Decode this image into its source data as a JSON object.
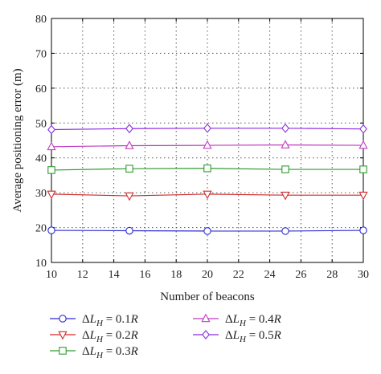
{
  "chart_data": {
    "type": "line",
    "xlabel": "Number of beacons",
    "ylabel": "Average positioning error (m)",
    "xlim": [
      10,
      30
    ],
    "ylim": [
      10,
      80
    ],
    "xticks": [
      10,
      12,
      14,
      16,
      18,
      20,
      22,
      24,
      26,
      28,
      30
    ],
    "yticks": [
      10,
      20,
      30,
      40,
      50,
      60,
      70,
      80
    ],
    "grid": "dotted",
    "legend_position": "below",
    "x": [
      10,
      15,
      20,
      25,
      30
    ],
    "series": [
      {
        "name": "ΔL_H = 0.1R",
        "label_var": "ΔL",
        "label_sub": "H",
        "label_value": " = 0.1",
        "label_unit": "R",
        "values": [
          19.2,
          19.1,
          19.0,
          19.0,
          19.2
        ],
        "color": "#2b2bd0",
        "marker": "circle"
      },
      {
        "name": "ΔL_H = 0.2R",
        "label_var": "ΔL",
        "label_sub": "H",
        "label_value": " = 0.2",
        "label_unit": "R",
        "values": [
          29.6,
          29.1,
          29.6,
          29.3,
          29.3
        ],
        "color": "#d02b2b",
        "marker": "triangle-down"
      },
      {
        "name": "ΔL_H = 0.3R",
        "label_var": "ΔL",
        "label_sub": "H",
        "label_value": " = 0.3",
        "label_unit": "R",
        "values": [
          36.5,
          36.9,
          37.0,
          36.7,
          36.7
        ],
        "color": "#2e9a2e",
        "marker": "square"
      },
      {
        "name": "ΔL_H = 0.4R",
        "label_var": "ΔL",
        "label_sub": "H",
        "label_value": " = 0.4",
        "label_unit": "R",
        "values": [
          43.2,
          43.5,
          43.6,
          43.7,
          43.6
        ],
        "color": "#c03cc0",
        "marker": "triangle-up"
      },
      {
        "name": "ΔL_H = 0.5R",
        "label_var": "ΔL",
        "label_sub": "H",
        "label_value": " = 0.5",
        "label_unit": "R",
        "values": [
          48.1,
          48.4,
          48.5,
          48.5,
          48.3
        ],
        "color": "#8a2be2",
        "marker": "diamond"
      }
    ]
  }
}
